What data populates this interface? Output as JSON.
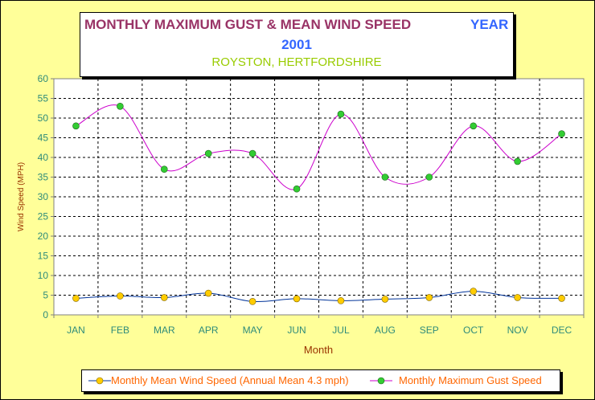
{
  "title": {
    "main": "MONTHLY MAXIMUM GUST & MEAN WIND SPEED",
    "year_label": "YEAR",
    "year": "2001",
    "location": "ROYSTON, HERTFORDSHIRE"
  },
  "colors": {
    "background": "#ffff99",
    "plot_bg": "#ffffff",
    "gust_line": "#cc00cc",
    "mean_line": "#003399",
    "gust_marker": "#33cc33",
    "mean_marker": "#ffcc00",
    "axis_text": "#2e8b7a",
    "axis_title": "#993300"
  },
  "chart_data": {
    "type": "line",
    "xlabel": "Month",
    "ylabel": "Wind Speed (MPH)",
    "ylim": [
      0,
      60
    ],
    "yticks": [
      0,
      5,
      10,
      15,
      20,
      25,
      30,
      35,
      40,
      45,
      50,
      55,
      60
    ],
    "grid": true,
    "smooth": true,
    "legend_position": "bottom",
    "categories": [
      "JAN",
      "FEB",
      "MAR",
      "APR",
      "MAY",
      "JUN",
      "JUL",
      "AUG",
      "SEP",
      "OCT",
      "NOV",
      "DEC"
    ],
    "series": [
      {
        "name": "Monthly Mean Wind Speed (Annual Mean 4.3 mph)",
        "values": [
          4.2,
          4.8,
          4.4,
          5.5,
          3.4,
          4.1,
          3.6,
          4.0,
          4.4,
          6.0,
          4.4,
          4.2
        ]
      },
      {
        "name": "Monthly Maximum Gust Speed",
        "values": [
          48,
          53,
          37,
          41,
          41,
          32,
          51,
          35,
          35,
          48,
          39,
          46
        ]
      }
    ]
  }
}
